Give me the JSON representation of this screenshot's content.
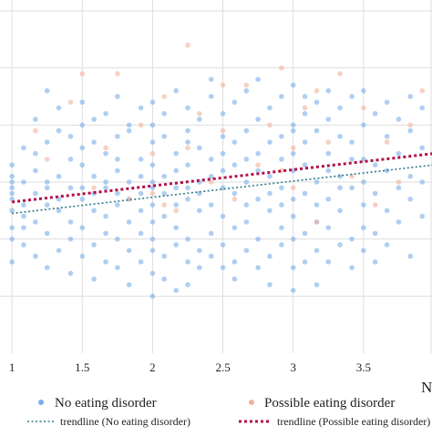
{
  "chart_data": {
    "type": "scatter",
    "title": "",
    "xlabel": "N",
    "ylabel": "",
    "xlim": [
      0.5,
      4.0
    ],
    "ylim": [
      0,
      6
    ],
    "x_ticks": [
      1,
      1.5,
      2,
      2.5,
      3,
      3.5
    ],
    "x_tick_labels": [
      "1",
      "1.5",
      "2",
      "2.5",
      "3",
      "3.5"
    ],
    "y_gridlines": [
      1,
      2,
      3,
      4,
      5,
      6
    ],
    "grid": true,
    "legend_position": "bottom",
    "series": [
      {
        "name": "No eating disorder",
        "color": "#7aaeea",
        "marker": "circle",
        "points": [
          [
            1,
            2.7
          ],
          [
            1,
            2.9
          ],
          [
            1,
            3.1
          ],
          [
            1,
            2.5
          ],
          [
            1,
            2.2
          ],
          [
            1,
            3.3
          ],
          [
            1,
            1.6
          ],
          [
            1,
            2.0
          ],
          [
            1,
            3.0
          ],
          [
            1,
            2.8
          ],
          [
            1.083,
            2.4
          ],
          [
            1.083,
            3.0
          ],
          [
            1.083,
            2.6
          ],
          [
            1.083,
            3.6
          ],
          [
            1.083,
            1.9
          ],
          [
            1.083,
            2.2
          ],
          [
            1.167,
            2.8
          ],
          [
            1.167,
            3.2
          ],
          [
            1.167,
            2.3
          ],
          [
            1.167,
            4.1
          ],
          [
            1.167,
            1.7
          ],
          [
            1.167,
            3.5
          ],
          [
            1.25,
            2.6
          ],
          [
            1.25,
            3.0
          ],
          [
            1.25,
            2.1
          ],
          [
            1.25,
            4.6
          ],
          [
            1.25,
            3.7
          ],
          [
            1.25,
            1.5
          ],
          [
            1.25,
            2.9
          ],
          [
            1.333,
            3.1
          ],
          [
            1.333,
            2.5
          ],
          [
            1.333,
            3.9
          ],
          [
            1.333,
            1.8
          ],
          [
            1.333,
            4.3
          ],
          [
            1.333,
            2.7
          ],
          [
            1.417,
            2.3
          ],
          [
            1.417,
            3.4
          ],
          [
            1.417,
            2.9
          ],
          [
            1.417,
            1.4
          ],
          [
            1.417,
            3.8
          ],
          [
            1.417,
            2.0
          ],
          [
            1.5,
            2.7
          ],
          [
            1.5,
            3.3
          ],
          [
            1.5,
            2.2
          ],
          [
            1.5,
            4.4
          ],
          [
            1.5,
            1.7
          ],
          [
            1.5,
            3.6
          ],
          [
            1.5,
            2.9
          ],
          [
            1.5,
            4.0
          ],
          [
            1.583,
            2.5
          ],
          [
            1.583,
            3.1
          ],
          [
            1.583,
            1.9
          ],
          [
            1.583,
            4.1
          ],
          [
            1.583,
            2.8
          ],
          [
            1.583,
            3.7
          ],
          [
            1.583,
            1.3
          ],
          [
            1.667,
            2.9
          ],
          [
            1.667,
            2.4
          ],
          [
            1.667,
            3.5
          ],
          [
            1.667,
            1.6
          ],
          [
            1.667,
            4.2
          ],
          [
            1.667,
            3.0
          ],
          [
            1.667,
            2.1
          ],
          [
            1.75,
            2.6
          ],
          [
            1.75,
            3.2
          ],
          [
            1.75,
            2.0
          ],
          [
            1.75,
            4.5
          ],
          [
            1.75,
            3.8
          ],
          [
            1.75,
            1.5
          ],
          [
            1.75,
            2.8
          ],
          [
            1.75,
            3.4
          ],
          [
            1.833,
            3.0
          ],
          [
            1.833,
            2.3
          ],
          [
            1.833,
            3.9
          ],
          [
            1.833,
            1.8
          ],
          [
            1.833,
            2.7
          ],
          [
            1.833,
            4.0
          ],
          [
            1.833,
            1.2
          ],
          [
            1.917,
            2.8
          ],
          [
            1.917,
            3.4
          ],
          [
            1.917,
            2.1
          ],
          [
            1.917,
            4.3
          ],
          [
            1.917,
            1.6
          ],
          [
            1.917,
            3.1
          ],
          [
            1.917,
            2.5
          ],
          [
            2,
            2.6
          ],
          [
            2,
            3.3
          ],
          [
            2,
            2.0
          ],
          [
            2,
            4.4
          ],
          [
            2,
            1.4
          ],
          [
            2,
            3.7
          ],
          [
            2,
            2.9
          ],
          [
            2,
            1.0
          ],
          [
            2,
            3.0
          ],
          [
            2,
            2.3
          ],
          [
            2,
            4.0
          ],
          [
            2,
            1.8
          ],
          [
            2.083,
            3.1
          ],
          [
            2.083,
            2.4
          ],
          [
            2.083,
            3.8
          ],
          [
            2.083,
            1.7
          ],
          [
            2.083,
            2.8
          ],
          [
            2.083,
            4.2
          ],
          [
            2.083,
            1.3
          ],
          [
            2.167,
            2.9
          ],
          [
            2.167,
            3.5
          ],
          [
            2.167,
            2.2
          ],
          [
            2.167,
            4.6
          ],
          [
            2.167,
            1.9
          ],
          [
            2.167,
            3.2
          ],
          [
            2.167,
            2.6
          ],
          [
            2.167,
            1.1
          ],
          [
            2.25,
            2.7
          ],
          [
            2.25,
            3.3
          ],
          [
            2.25,
            2.0
          ],
          [
            2.25,
            4.3
          ],
          [
            2.25,
            1.6
          ],
          [
            2.25,
            3.7
          ],
          [
            2.25,
            2.9
          ],
          [
            2.25,
            1.2
          ],
          [
            2.25,
            3.9
          ],
          [
            2.333,
            3.0
          ],
          [
            2.333,
            2.5
          ],
          [
            2.333,
            3.6
          ],
          [
            2.333,
            1.8
          ],
          [
            2.333,
            4.1
          ],
          [
            2.333,
            2.8
          ],
          [
            2.333,
            1.5
          ],
          [
            2.417,
            2.6
          ],
          [
            2.417,
            3.4
          ],
          [
            2.417,
            2.1
          ],
          [
            2.417,
            4.5
          ],
          [
            2.417,
            1.7
          ],
          [
            2.417,
            3.1
          ],
          [
            2.417,
            4.8
          ],
          [
            2.5,
            3.2
          ],
          [
            2.5,
            2.4
          ],
          [
            2.5,
            3.8
          ],
          [
            2.5,
            1.9
          ],
          [
            2.5,
            2.9
          ],
          [
            2.5,
            4.2
          ],
          [
            2.5,
            1.5
          ],
          [
            2.5,
            3.5
          ],
          [
            2.583,
            2.8
          ],
          [
            2.583,
            3.3
          ],
          [
            2.583,
            2.2
          ],
          [
            2.583,
            4.4
          ],
          [
            2.583,
            1.6
          ],
          [
            2.583,
            3.7
          ],
          [
            2.583,
            1.3
          ],
          [
            2.667,
            3.0
          ],
          [
            2.667,
            2.6
          ],
          [
            2.667,
            3.9
          ],
          [
            2.667,
            1.8
          ],
          [
            2.667,
            4.6
          ],
          [
            2.667,
            2.3
          ],
          [
            2.667,
            3.4
          ],
          [
            2.75,
            2.7
          ],
          [
            2.75,
            3.5
          ],
          [
            2.75,
            2.0
          ],
          [
            2.75,
            4.1
          ],
          [
            2.75,
            1.5
          ],
          [
            2.75,
            3.2
          ],
          [
            2.75,
            4.8
          ],
          [
            2.833,
            3.1
          ],
          [
            2.833,
            2.5
          ],
          [
            2.833,
            3.7
          ],
          [
            2.833,
            1.7
          ],
          [
            2.833,
            4.3
          ],
          [
            2.833,
            2.8
          ],
          [
            2.833,
            1.2
          ],
          [
            2.917,
            2.9
          ],
          [
            2.917,
            3.4
          ],
          [
            2.917,
            2.2
          ],
          [
            2.917,
            4.5
          ],
          [
            2.917,
            1.9
          ],
          [
            2.917,
            3.8
          ],
          [
            2.917,
            2.6
          ],
          [
            3,
            3.2
          ],
          [
            3,
            2.7
          ],
          [
            3,
            4.0
          ],
          [
            3,
            2.0
          ],
          [
            3,
            4.7
          ],
          [
            3,
            3.5
          ],
          [
            3,
            1.5
          ],
          [
            3,
            2.4
          ],
          [
            3,
            3.9
          ],
          [
            3,
            1.1
          ],
          [
            3.083,
            2.8
          ],
          [
            3.083,
            3.3
          ],
          [
            3.083,
            2.1
          ],
          [
            3.083,
            4.2
          ],
          [
            3.083,
            1.6
          ],
          [
            3.083,
            3.7
          ],
          [
            3.083,
            4.5
          ],
          [
            3.167,
            3.0
          ],
          [
            3.167,
            2.6
          ],
          [
            3.167,
            3.9
          ],
          [
            3.167,
            1.8
          ],
          [
            3.167,
            4.4
          ],
          [
            3.167,
            2.3
          ],
          [
            3.167,
            1.2
          ],
          [
            3.25,
            2.7
          ],
          [
            3.25,
            3.5
          ],
          [
            3.25,
            2.2
          ],
          [
            3.25,
            4.1
          ],
          [
            3.25,
            1.6
          ],
          [
            3.25,
            3.2
          ],
          [
            3.25,
            4.6
          ],
          [
            3.333,
            3.1
          ],
          [
            3.333,
            2.5
          ],
          [
            3.333,
            3.8
          ],
          [
            3.333,
            1.9
          ],
          [
            3.333,
            4.3
          ],
          [
            3.333,
            2.9
          ],
          [
            3.417,
            2.9
          ],
          [
            3.417,
            3.4
          ],
          [
            3.417,
            2.0
          ],
          [
            3.417,
            4.5
          ],
          [
            3.417,
            1.5
          ],
          [
            3.417,
            3.7
          ],
          [
            3.5,
            3.0
          ],
          [
            3.5,
            2.6
          ],
          [
            3.5,
            4.0
          ],
          [
            3.5,
            1.8
          ],
          [
            3.5,
            3.4
          ],
          [
            3.5,
            4.6
          ],
          [
            3.5,
            2.2
          ],
          [
            3.583,
            2.8
          ],
          [
            3.583,
            3.3
          ],
          [
            3.583,
            2.1
          ],
          [
            3.583,
            4.2
          ],
          [
            3.583,
            1.6
          ],
          [
            3.667,
            3.2
          ],
          [
            3.667,
            2.5
          ],
          [
            3.667,
            3.8
          ],
          [
            3.667,
            4.4
          ],
          [
            3.667,
            1.9
          ],
          [
            3.75,
            2.9
          ],
          [
            3.75,
            3.5
          ],
          [
            3.75,
            2.3
          ],
          [
            3.75,
            4.1
          ],
          [
            3.833,
            3.1
          ],
          [
            3.833,
            2.7
          ],
          [
            3.833,
            3.9
          ],
          [
            3.833,
            1.7
          ],
          [
            3.833,
            4.5
          ],
          [
            3.917,
            3.0
          ],
          [
            3.917,
            2.4
          ],
          [
            3.917,
            3.6
          ],
          [
            3.917,
            4.3
          ]
        ]
      },
      {
        "name": "Possible eating disorder",
        "color": "#f2b39a",
        "marker": "circle",
        "points": [
          [
            1.167,
            3.9
          ],
          [
            1.25,
            3.4
          ],
          [
            1.417,
            4.4
          ],
          [
            1.5,
            4.9
          ],
          [
            1.583,
            2.9
          ],
          [
            1.667,
            3.6
          ],
          [
            1.75,
            4.9
          ],
          [
            1.833,
            2.7
          ],
          [
            1.917,
            4.0
          ],
          [
            2,
            2.8
          ],
          [
            2,
            3.5
          ],
          [
            2.083,
            4.5
          ],
          [
            2.167,
            2.5
          ],
          [
            2.25,
            5.4
          ],
          [
            2.25,
            3.6
          ],
          [
            2.333,
            4.2
          ],
          [
            2.417,
            3.0
          ],
          [
            2.5,
            3.9
          ],
          [
            2.583,
            2.7
          ],
          [
            2.667,
            4.7
          ],
          [
            2.75,
            3.3
          ],
          [
            2.833,
            4.0
          ],
          [
            2.917,
            5.0
          ],
          [
            3,
            2.9
          ],
          [
            3,
            3.6
          ],
          [
            3.083,
            4.3
          ],
          [
            3.167,
            2.3
          ],
          [
            3.25,
            3.7
          ],
          [
            3.333,
            4.9
          ],
          [
            3.417,
            3.1
          ],
          [
            3.5,
            4.3
          ],
          [
            3.583,
            2.6
          ],
          [
            3.667,
            3.7
          ],
          [
            3.75,
            3.0
          ],
          [
            3.833,
            4.0
          ],
          [
            3.917,
            4.6
          ],
          [
            2.083,
            2.6
          ],
          [
            2.5,
            4.7
          ],
          [
            2.917,
            3.2
          ],
          [
            3.167,
            4.6
          ]
        ]
      }
    ],
    "trendlines": [
      {
        "name": "trendline (No eating disorder)",
        "color": "#2f7a8a",
        "style": "dotted",
        "x": [
          1,
          4
        ],
        "y": [
          2.45,
          3.3
        ]
      },
      {
        "name": "trendline (Possible eating disorder)",
        "color": "#b0104a",
        "style": "dotted",
        "x": [
          1,
          4
        ],
        "y": [
          2.65,
          3.5
        ]
      }
    ]
  }
}
